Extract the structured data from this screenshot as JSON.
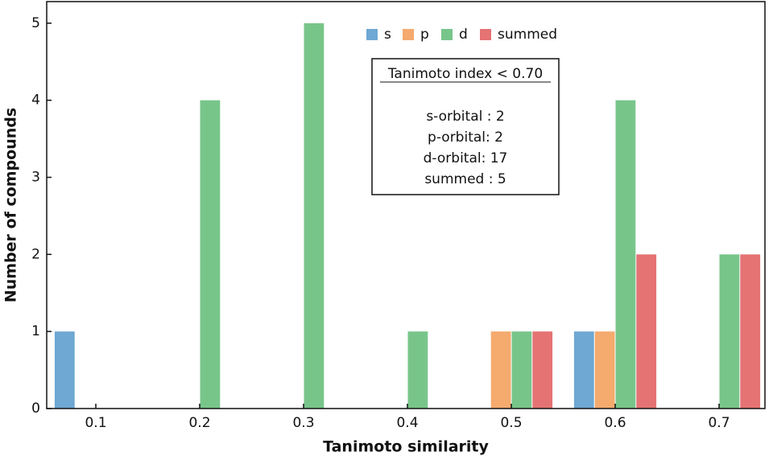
{
  "chart_data": {
    "type": "bar",
    "x_label": "Tanimoto similarity",
    "y_label": "Number of compounds",
    "categories": [
      "0.1",
      "0.2",
      "0.3",
      "0.4",
      "0.5",
      "0.6",
      "0.7"
    ],
    "series": [
      {
        "name": "s",
        "color": "#6ea8d3",
        "values": [
          1,
          0,
          0,
          0,
          0,
          1,
          0
        ]
      },
      {
        "name": "p",
        "color": "#f5aa6e",
        "values": [
          0,
          0,
          0,
          0,
          1,
          1,
          0
        ]
      },
      {
        "name": "d",
        "color": "#78c58a",
        "values": [
          0,
          4,
          5,
          1,
          1,
          4,
          2
        ]
      },
      {
        "name": "summed",
        "color": "#e57373",
        "values": [
          0,
          0,
          0,
          0,
          1,
          2,
          2
        ]
      }
    ],
    "ylim": [
      0,
      5.28
    ],
    "yticks": [
      0,
      1,
      2,
      3,
      4,
      5
    ],
    "legend": "top-center",
    "annotation": {
      "title": "Tanimoto index < 0.70",
      "lines": [
        "s-orbital : 2",
        "p-orbital: 2",
        "d-orbital:  17",
        "summed : 5"
      ]
    }
  }
}
